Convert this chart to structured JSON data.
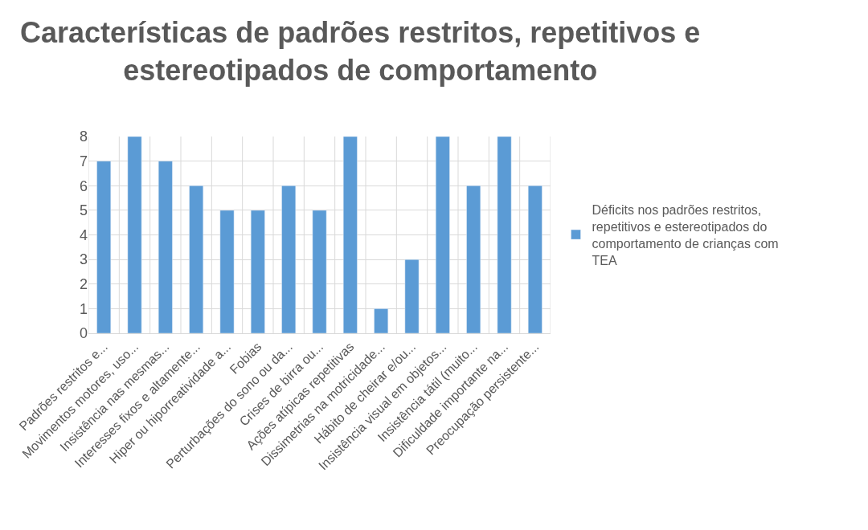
{
  "chart_data": {
    "type": "bar",
    "title": "Características de padrões restritos, repetitivos e estereotipados de comportamento",
    "categories": [
      "Padrões restritos e...",
      "Movimentos motores, uso...",
      "Insistência nas mesmas...",
      "Interesses fixos e altamente...",
      "Hiper ou hiporreatividade a...",
      "Fobias",
      "Perturbações do sono ou da...",
      "Crises de birra ou...",
      "Ações atípicas repetitivas",
      "Dissimetrias na motricidade...",
      "Hábito de cheirar e/ou...",
      "Insistência visual em objetos...",
      "Insistência tátil (muito...",
      "Dificuldade importante na...",
      "Preocupação persistente..."
    ],
    "series": [
      {
        "name": "Déficits nos padrões restritos, repetitivos e estereotipados do comportamento de crianças com TEA",
        "color": "#5b9bd5",
        "values": [
          7,
          8,
          7,
          6,
          5,
          5,
          6,
          5,
          8,
          1,
          3,
          8,
          6,
          8,
          6
        ]
      }
    ],
    "ylim": [
      0,
      8
    ],
    "yticks": [
      0,
      1,
      2,
      3,
      4,
      5,
      6,
      7,
      8
    ],
    "grid": true,
    "legend": "right"
  }
}
